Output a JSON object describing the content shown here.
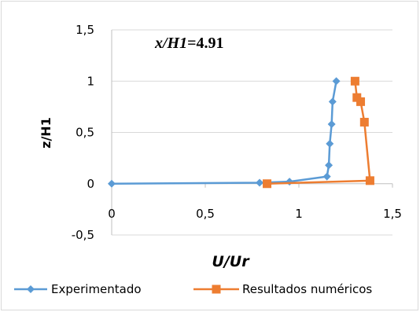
{
  "chart_data": {
    "type": "scatter",
    "annotation_var": "x/H1",
    "annotation_eq": "=4.91",
    "xlabel": "U/Ur",
    "ylabel": "z/H1",
    "xlim": [
      0,
      1.5
    ],
    "ylim": [
      -0.5,
      1.5
    ],
    "x_ticks": [
      0,
      0.5,
      1,
      1.5
    ],
    "y_ticks": [
      -0.5,
      0,
      0.5,
      1,
      1.5
    ],
    "x_tick_labels": [
      "0",
      "0,5",
      "1",
      "1,5"
    ],
    "y_tick_labels": [
      "-0,5",
      "0",
      "0,5",
      "1",
      "1,5"
    ],
    "grid": "horizontal",
    "legend_position": "bottom",
    "series": [
      {
        "name": "Experimentado",
        "color": "#5b9bd5",
        "marker": "diamond",
        "points": [
          [
            0.0,
            0.0
          ],
          [
            0.79,
            0.01
          ],
          [
            0.95,
            0.02
          ],
          [
            1.15,
            0.07
          ],
          [
            1.16,
            0.18
          ],
          [
            1.165,
            0.39
          ],
          [
            1.175,
            0.58
          ],
          [
            1.18,
            0.8
          ],
          [
            1.2,
            1.0
          ]
        ]
      },
      {
        "name": "Resultados numéricos",
        "color": "#ed7d31",
        "marker": "square",
        "points": [
          [
            0.83,
            0.0
          ],
          [
            1.38,
            0.03
          ],
          [
            1.35,
            0.6
          ],
          [
            1.33,
            0.8
          ],
          [
            1.31,
            0.84
          ],
          [
            1.3,
            1.0
          ]
        ]
      }
    ]
  }
}
